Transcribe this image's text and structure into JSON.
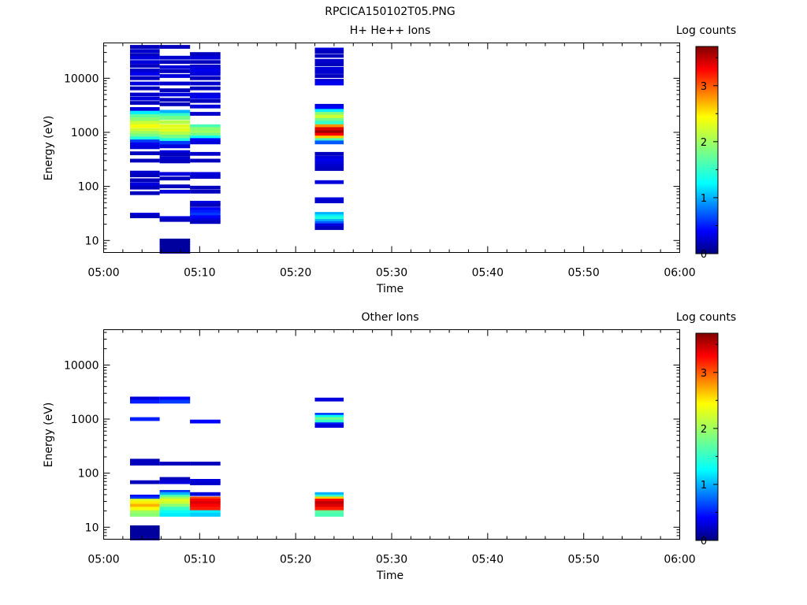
{
  "title": "RPCICA150102T05.PNG",
  "chart_data": [
    {
      "type": "heatmap",
      "title": "H+ He++ Ions",
      "xlabel": "Time",
      "ylabel": "Energy (eV)",
      "yscale": "log",
      "xlim": [
        "05:00",
        "06:00"
      ],
      "ylim": [
        6,
        45000
      ],
      "x_ticks": [
        "05:00",
        "05:10",
        "05:20",
        "05:30",
        "05:40",
        "05:50",
        "06:00"
      ],
      "y_ticks": [
        "10",
        "100",
        "1000",
        "10000"
      ],
      "colorbar": {
        "label": "Log counts",
        "range": [
          0,
          3.7
        ],
        "ticks": [
          "0",
          "1",
          "2",
          "3"
        ]
      },
      "columns": [
        {
          "t0": "05:02:45",
          "t1": "05:05:50",
          "bins": [
            [
              38000,
              0.2
            ],
            [
              32000,
              0.25
            ],
            [
              27000,
              0.2
            ],
            [
              24000,
              0.3
            ],
            [
              20000,
              0.3
            ],
            [
              17000,
              0.2
            ],
            [
              14000,
              0.25
            ],
            [
              12000,
              0.35
            ],
            [
              10000,
              0.2
            ],
            [
              8000,
              0.3
            ],
            [
              6500,
              0.2
            ],
            [
              5000,
              0.25
            ],
            [
              4200,
              0.3
            ],
            [
              3500,
              0.2
            ],
            [
              2700,
              0.3
            ],
            [
              2300,
              1.2
            ],
            [
              2000,
              1.7
            ],
            [
              1750,
              1.9
            ],
            [
              1500,
              2.2
            ],
            [
              1300,
              2.4
            ],
            [
              1100,
              2.2
            ],
            [
              980,
              2.0
            ],
            [
              870,
              1.8
            ],
            [
              770,
              1.4
            ],
            [
              680,
              0.6
            ],
            [
              600,
              0.35
            ],
            [
              530,
              0.3
            ],
            [
              410,
              0.2
            ],
            [
              300,
              0.2
            ],
            [
              180,
              0.25
            ],
            [
              160,
              0.2
            ],
            [
              130,
              0.2
            ],
            [
              110,
              0.3
            ],
            [
              95,
              0.2
            ],
            [
              75,
              0.2
            ],
            [
              30,
              0.3
            ],
            [
              28,
              0.2
            ]
          ]
        },
        {
          "t0": "05:05:50",
          "t1": "05:09:00",
          "bins": [
            [
              38000,
              0.2
            ],
            [
              24000,
              0.25
            ],
            [
              20000,
              0.2
            ],
            [
              16000,
              0.3
            ],
            [
              13500,
              0.2
            ],
            [
              11000,
              0.3
            ],
            [
              8000,
              0.25
            ],
            [
              6000,
              0.2
            ],
            [
              5000,
              0.3
            ],
            [
              4000,
              0.2
            ],
            [
              3300,
              0.2
            ],
            [
              2400,
              1.0
            ],
            [
              2100,
              1.5
            ],
            [
              1850,
              1.8
            ],
            [
              1550,
              2.1
            ],
            [
              1300,
              2.3
            ],
            [
              1100,
              2.3
            ],
            [
              950,
              2.1
            ],
            [
              830,
              1.8
            ],
            [
              720,
              1.4
            ],
            [
              640,
              0.6
            ],
            [
              550,
              0.3
            ],
            [
              430,
              0.3
            ],
            [
              390,
              0.2
            ],
            [
              330,
              0.25
            ],
            [
              290,
              0.2
            ],
            [
              170,
              0.3
            ],
            [
              140,
              0.2
            ],
            [
              100,
              0.2
            ],
            [
              80,
              0.3
            ],
            [
              26,
              0.3
            ],
            [
              24,
              0.2
            ],
            [
              10,
              0.1
            ],
            [
              9,
              0.1
            ],
            [
              8,
              0.1
            ],
            [
              7,
              0.1
            ],
            [
              6.2,
              0.1
            ]
          ]
        },
        {
          "t0": "05:09:00",
          "t1": "05:12:10",
          "bins": [
            [
              28000,
              0.2
            ],
            [
              24000,
              0.3
            ],
            [
              20000,
              0.2
            ],
            [
              16500,
              0.25
            ],
            [
              15000,
              0.3
            ],
            [
              13500,
              0.35
            ],
            [
              12000,
              0.3
            ],
            [
              10000,
              0.2
            ],
            [
              8000,
              0.25
            ],
            [
              6500,
              0.2
            ],
            [
              5000,
              0.3
            ],
            [
              4500,
              0.35
            ],
            [
              3800,
              0.2
            ],
            [
              3000,
              0.3
            ],
            [
              2200,
              0.25
            ],
            [
              1300,
              1.6
            ],
            [
              1150,
              1.9
            ],
            [
              1000,
              2.0
            ],
            [
              900,
              1.8
            ],
            [
              800,
              1.3
            ],
            [
              720,
              0.4
            ],
            [
              650,
              0.3
            ],
            [
              400,
              0.25
            ],
            [
              300,
              0.2
            ],
            [
              170,
              0.3
            ],
            [
              150,
              0.25
            ],
            [
              95,
              0.2
            ],
            [
              80,
              0.2
            ],
            [
              50,
              0.3
            ],
            [
              45,
              0.2
            ],
            [
              38,
              0.4
            ],
            [
              34,
              0.5
            ],
            [
              30,
              0.6
            ],
            [
              27,
              0.4
            ],
            [
              24,
              0.3
            ],
            [
              22,
              0.2
            ]
          ]
        },
        {
          "t0": "05:22:00",
          "t1": "05:25:00",
          "bins": [
            [
              34000,
              0.3
            ],
            [
              31000,
              0.2
            ],
            [
              26000,
              0.2
            ],
            [
              21000,
              0.25
            ],
            [
              18000,
              0.2
            ],
            [
              15000,
              0.3
            ],
            [
              13000,
              0.25
            ],
            [
              11000,
              0.2
            ],
            [
              9000,
              0.3
            ],
            [
              8000,
              0.35
            ],
            [
              3100,
              0.3
            ],
            [
              2800,
              0.4
            ],
            [
              2500,
              1.2
            ],
            [
              2200,
              1.9
            ],
            [
              1950,
              2.2
            ],
            [
              1700,
              1.8
            ],
            [
              1500,
              1.5
            ],
            [
              1300,
              2.8
            ],
            [
              1150,
              3.4
            ],
            [
              1000,
              3.6
            ],
            [
              900,
              3.3
            ],
            [
              800,
              2.6
            ],
            [
              720,
              1.6
            ],
            [
              650,
              0.7
            ],
            [
              400,
              0.2
            ],
            [
              340,
              0.3
            ],
            [
              300,
              0.35
            ],
            [
              270,
              0.3
            ],
            [
              240,
              0.25
            ],
            [
              210,
              0.2
            ],
            [
              120,
              0.3
            ],
            [
              58,
              0.3
            ],
            [
              53,
              0.25
            ],
            [
              31,
              1.0
            ],
            [
              28,
              1.2
            ],
            [
              26,
              1.4
            ],
            [
              23,
              1.0
            ],
            [
              21,
              0.7
            ],
            [
              19,
              0.3
            ],
            [
              17,
              0.2
            ]
          ]
        }
      ]
    },
    {
      "type": "heatmap",
      "title": "Other Ions",
      "xlabel": "Time",
      "ylabel": "Energy (eV)",
      "yscale": "log",
      "xlim": [
        "05:00",
        "06:00"
      ],
      "ylim": [
        6,
        45000
      ],
      "x_ticks": [
        "05:00",
        "05:10",
        "05:20",
        "05:30",
        "05:40",
        "05:50",
        "06:00"
      ],
      "y_ticks": [
        "10",
        "100",
        "1000",
        "10000"
      ],
      "colorbar": {
        "label": "Log counts",
        "range": [
          0,
          3.7
        ],
        "ticks": [
          "0",
          "1",
          "2",
          "3"
        ]
      },
      "columns": [
        {
          "t0": "05:02:45",
          "t1": "05:05:50",
          "bins": [
            [
              2400,
              0.3
            ],
            [
              2100,
              0.5
            ],
            [
              1000,
              0.5
            ],
            [
              170,
              0.2
            ],
            [
              150,
              0.2
            ],
            [
              68,
              0.2
            ],
            [
              37,
              0.4
            ],
            [
              34,
              0.6
            ],
            [
              31,
              2.3
            ],
            [
              28,
              2.5
            ],
            [
              25,
              2.7
            ],
            [
              22,
              2.4
            ],
            [
              19,
              2.0
            ],
            [
              17,
              1.9
            ],
            [
              10,
              0.1
            ],
            [
              9,
              0.1
            ],
            [
              8,
              0.1
            ],
            [
              7,
              0.1
            ],
            [
              6.2,
              0.1
            ]
          ]
        },
        {
          "t0": "05:05:50",
          "t1": "05:09:00",
          "bins": [
            [
              2400,
              0.4
            ],
            [
              2100,
              0.6
            ],
            [
              150,
              0.2
            ],
            [
              78,
              0.2
            ],
            [
              68,
              0.3
            ],
            [
              45,
              0.6
            ],
            [
              41,
              1.0
            ],
            [
              37,
              1.6
            ],
            [
              34,
              2.0
            ],
            [
              31,
              2.3
            ],
            [
              28,
              2.2
            ],
            [
              25,
              1.9
            ],
            [
              22,
              1.5
            ],
            [
              19,
              1.3
            ],
            [
              17,
              1.2
            ]
          ]
        },
        {
          "t0": "05:09:00",
          "t1": "05:12:10",
          "bins": [
            [
              900,
              0.4
            ],
            [
              150,
              0.2
            ],
            [
              72,
              0.3
            ],
            [
              65,
              0.25
            ],
            [
              41,
              0.3
            ],
            [
              34,
              3.1
            ],
            [
              31,
              3.3
            ],
            [
              28,
              3.4
            ],
            [
              25,
              3.3
            ],
            [
              22,
              3.2
            ],
            [
              19,
              1.2
            ],
            [
              17,
              1.1
            ]
          ]
        },
        {
          "t0": "05:22:00",
          "t1": "05:25:00",
          "bins": [
            [
              2300,
              0.3
            ],
            [
              1200,
              0.6
            ],
            [
              1100,
              1.3
            ],
            [
              1000,
              1.8
            ],
            [
              900,
              1.5
            ],
            [
              800,
              0.5
            ],
            [
              750,
              0.3
            ],
            [
              41,
              1.0
            ],
            [
              37,
              1.5
            ],
            [
              34,
              2.6
            ],
            [
              31,
              3.3
            ],
            [
              28,
              3.5
            ],
            [
              25,
              3.4
            ],
            [
              22,
              3.2
            ],
            [
              19,
              1.7
            ],
            [
              17,
              1.6
            ]
          ]
        }
      ]
    }
  ]
}
